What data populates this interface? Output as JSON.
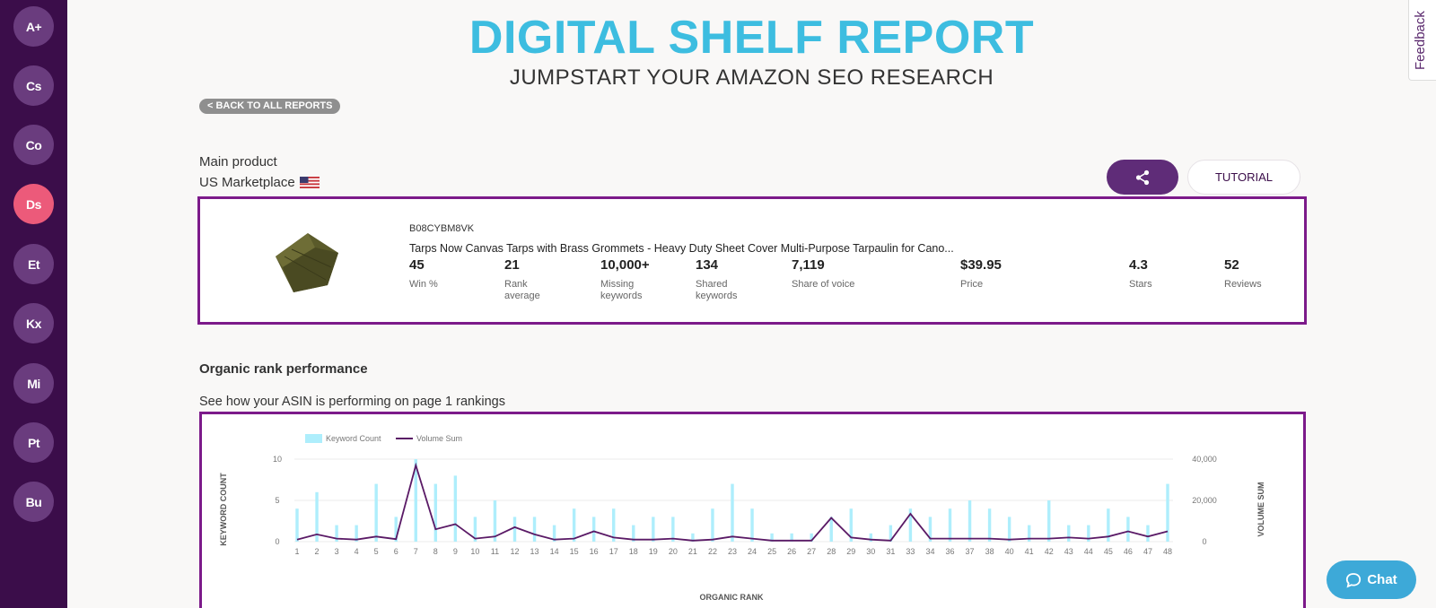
{
  "sidebar": {
    "items": [
      {
        "label": "A+",
        "active": false
      },
      {
        "label": "Cs",
        "active": false
      },
      {
        "label": "Co",
        "active": false
      },
      {
        "label": "Ds",
        "active": true
      },
      {
        "label": "Et",
        "active": false
      },
      {
        "label": "Kx",
        "active": false
      },
      {
        "label": "Mi",
        "active": false
      },
      {
        "label": "Pt",
        "active": false
      },
      {
        "label": "Bu",
        "active": false
      }
    ]
  },
  "header": {
    "title": "DIGITAL SHELF REPORT",
    "subtitle": "JUMPSTART YOUR AMAZON SEO RESEARCH",
    "back_label": "< BACK TO ALL REPORTS",
    "feedback_label": "Feedback"
  },
  "product_section": {
    "label": "Main product",
    "marketplace": "US Marketplace",
    "tutorial_label": "TUTORIAL"
  },
  "product": {
    "asin": "B08CYBM8VK",
    "title": "Tarps Now Canvas Tarps with Brass Grommets - Heavy Duty Sheet Cover Multi-Purpose Tarpaulin for Cano...",
    "stats": [
      {
        "value": "45",
        "label": "Win %"
      },
      {
        "value": "21",
        "label": "Rank\naverage"
      },
      {
        "value": "10,000+",
        "label": "Missing\nkeywords"
      },
      {
        "value": "134",
        "label": "Shared\nkeywords"
      },
      {
        "value": "7,119",
        "label": "Share of voice"
      },
      {
        "value": "$39.95",
        "label": "Price"
      },
      {
        "value": "4.3",
        "label": "Stars"
      },
      {
        "value": "52",
        "label": "Reviews"
      }
    ]
  },
  "organic": {
    "title": "Organic rank performance",
    "subtitle": "See how your ASIN is performing on page 1 rankings"
  },
  "chat_label": "Chat",
  "colors": {
    "title": "#3dbde0",
    "accent": "#7c1a8a",
    "bar": "#aeeefc",
    "line": "#5a1a66"
  },
  "chart_data": {
    "type": "bar",
    "legend": [
      "Keyword Count",
      "Volume Sum"
    ],
    "xlabel": "ORGANIC RANK",
    "ylabel": "KEYWORD COUNT",
    "y2label": "VOLUME SUM",
    "ylim": [
      0,
      10
    ],
    "y2lim": [
      0,
      40000
    ],
    "yticks": [
      "0",
      "5",
      "10"
    ],
    "y2ticks": [
      "0",
      "20,000",
      "40,000"
    ],
    "categories": [
      "1",
      "2",
      "3",
      "4",
      "5",
      "6",
      "7",
      "8",
      "9",
      "10",
      "11",
      "12",
      "13",
      "14",
      "15",
      "16",
      "17",
      "18",
      "19",
      "20",
      "21",
      "22",
      "23",
      "24",
      "25",
      "26",
      "27",
      "28",
      "29",
      "30",
      "31",
      "33",
      "34",
      "36",
      "37",
      "38",
      "40",
      "41",
      "42",
      "43",
      "44",
      "45",
      "46",
      "47",
      "48"
    ],
    "series": [
      {
        "name": "Keyword Count",
        "type": "bar",
        "values": [
          4,
          6,
          2,
          2,
          7,
          3,
          10,
          7,
          8,
          3,
          5,
          3,
          3,
          2,
          4,
          3,
          4,
          2,
          3,
          3,
          1,
          4,
          7,
          4,
          1,
          1,
          1,
          3,
          4,
          1,
          2,
          4,
          3,
          4,
          5,
          4,
          3,
          2,
          5,
          2,
          2,
          4,
          3,
          2,
          7
        ]
      },
      {
        "name": "Volume Sum",
        "type": "line",
        "values": [
          1000,
          3500,
          1500,
          1000,
          2500,
          1200,
          37000,
          6000,
          8500,
          1500,
          2500,
          7000,
          3500,
          1000,
          1500,
          5000,
          2000,
          1000,
          1000,
          1500,
          500,
          1000,
          2500,
          1500,
          500,
          500,
          500,
          11500,
          2000,
          1000,
          500,
          13500,
          1500,
          1500,
          1500,
          1500,
          1000,
          1500,
          1500,
          2000,
          1500,
          2500,
          5000,
          2500,
          5000
        ]
      }
    ]
  }
}
